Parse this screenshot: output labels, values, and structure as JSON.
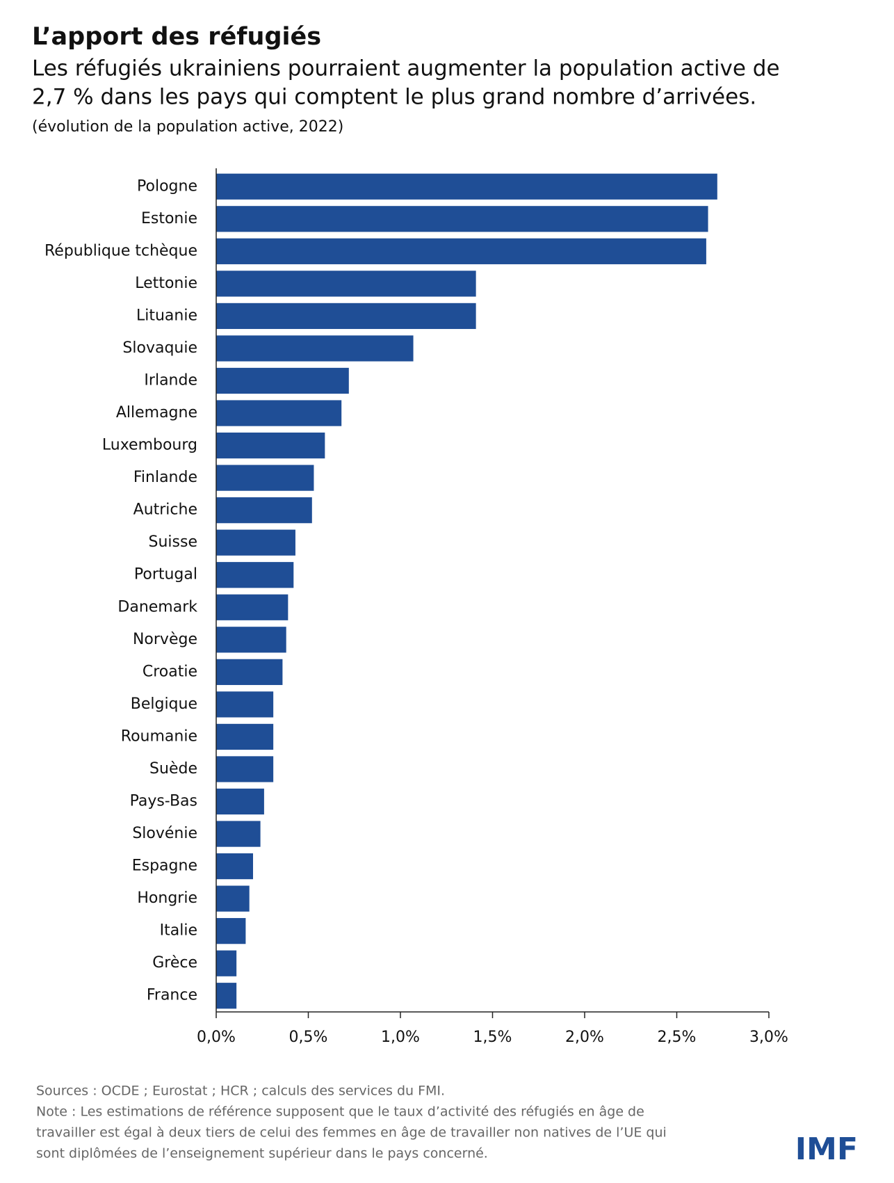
{
  "chart_data": {
    "type": "hbar",
    "title": "L’apport des réfugiés",
    "subtitle": [
      "Les réfugiés ukrainiens pourraient augmenter la population active de",
      "2,7 % dans les pays qui comptent le plus grand nombre d’arrivées."
    ],
    "unit_note": "(évolution de la population active, 2022)",
    "categories": [
      "Pologne",
      "Estonie",
      "République tchèque",
      "Lettonie",
      "Lituanie",
      "Slovaquie",
      "Irlande",
      "Allemagne",
      "Luxembourg",
      "Finlande",
      "Autriche",
      "Suisse",
      "Portugal",
      "Danemark",
      "Norvège",
      "Croatie",
      "Belgique",
      "Roumanie",
      "Suède",
      "Pays-Bas",
      "Slovénie",
      "Espagne",
      "Hongrie",
      "Italie",
      "Grèce",
      "France"
    ],
    "values": [
      2.72,
      2.67,
      2.66,
      1.41,
      1.41,
      1.07,
      0.72,
      0.68,
      0.59,
      0.53,
      0.52,
      0.43,
      0.42,
      0.39,
      0.38,
      0.36,
      0.31,
      0.31,
      0.31,
      0.26,
      0.24,
      0.2,
      0.18,
      0.16,
      0.11,
      0.11
    ],
    "color": "#1f4e96",
    "xlim": [
      0,
      3
    ],
    "xticks": [
      {
        "value": 0,
        "label": "0,0%"
      },
      {
        "value": 0.5,
        "label": "0,5%"
      },
      {
        "value": 1,
        "label": "1,0%"
      },
      {
        "value": 1.5,
        "label": "1,5%"
      },
      {
        "value": 2,
        "label": "2,0%"
      },
      {
        "value": 2.5,
        "label": "2,5%"
      },
      {
        "value": 3,
        "label": "3,0%"
      }
    ],
    "sources": "Sources : OCDE ; Eurostat ; HCR ; calculs des services du FMI.",
    "note": [
      "Note : Les estimations de référence supposent que le taux d’activité des réfugiés en âge de",
      "travailler est égal à deux tiers de celui des femmes en âge de travailler non natives de l’UE qui",
      "sont diplômées de l’enseignement supérieur dans le pays concerné."
    ],
    "logo": "IMF"
  }
}
